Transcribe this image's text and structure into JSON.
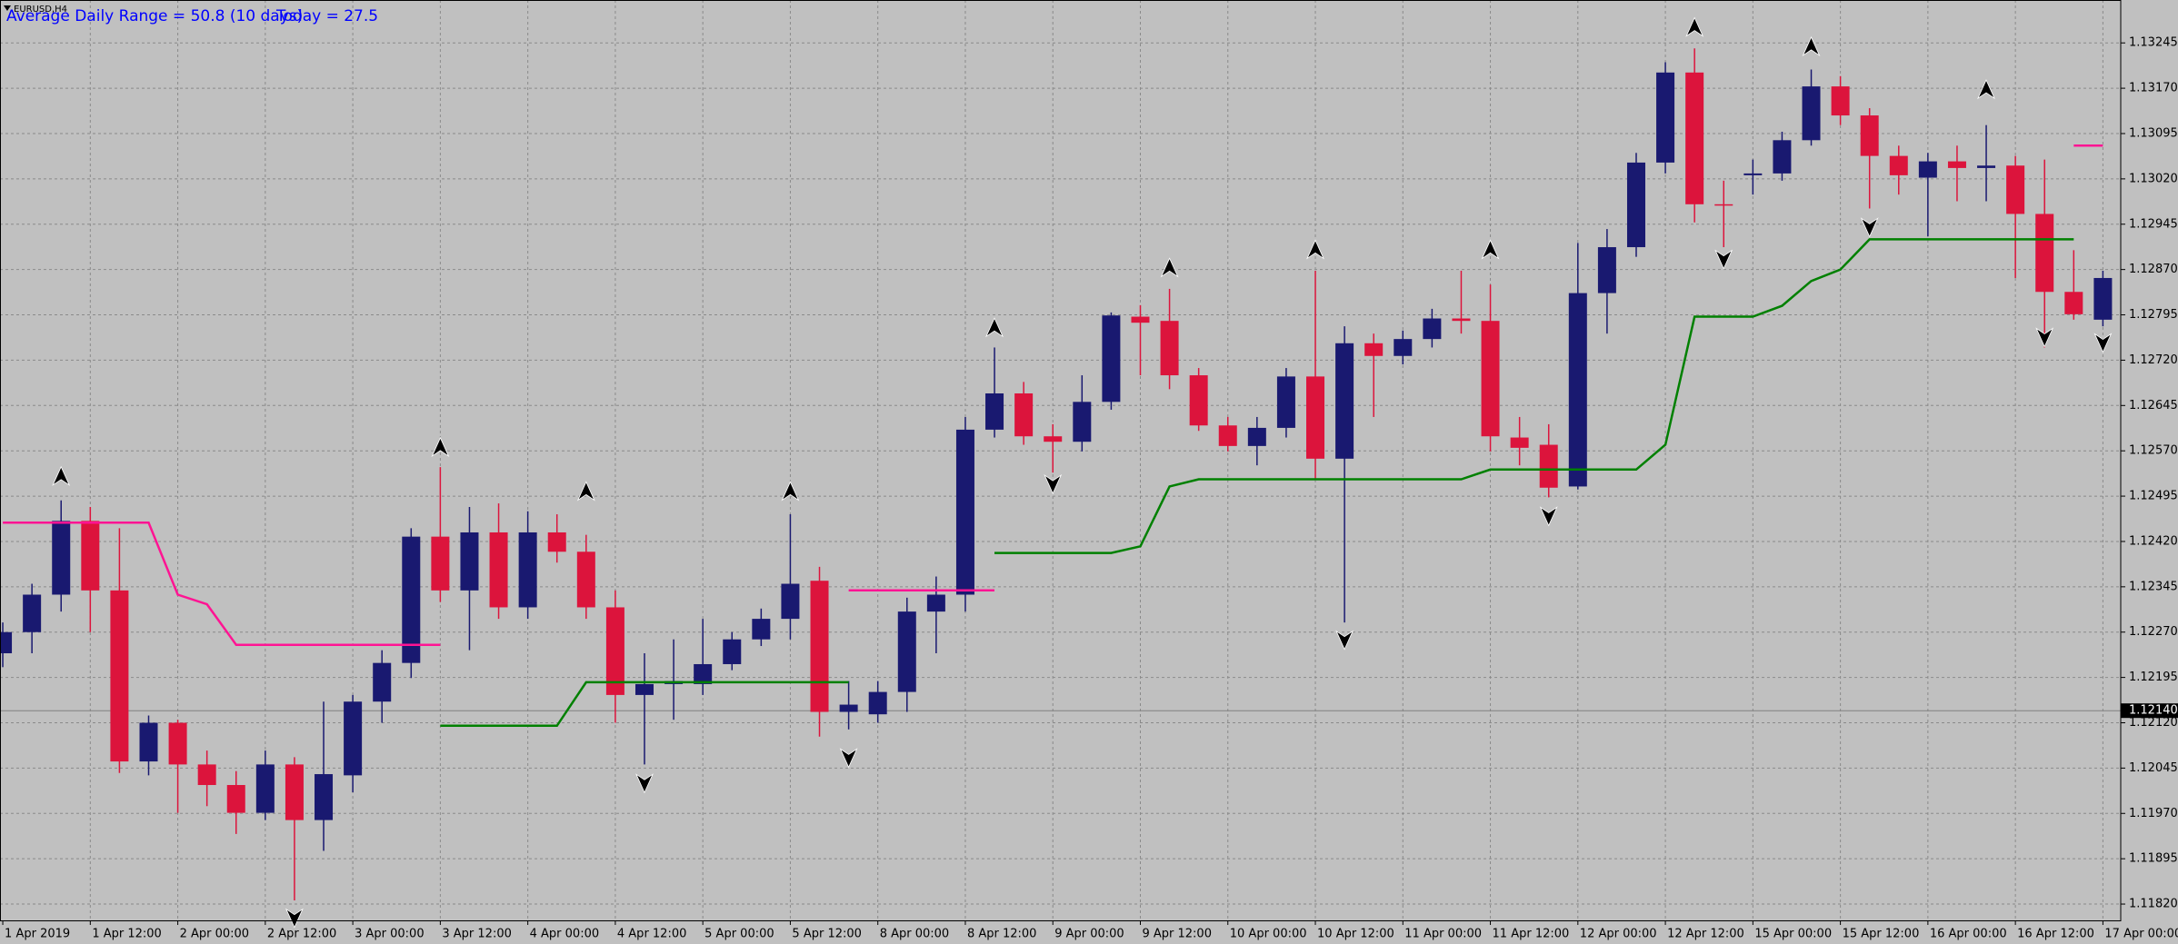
{
  "chart_data": {
    "type": "candlestick",
    "title": "EURUSD,H4",
    "annotations": [
      "Average Daily Range = 50.8 (10 days)",
      "Today = 27.5"
    ],
    "annotation_color": "#0000ff",
    "background": "#c0c0c0",
    "grid": true,
    "up_color": "#191970",
    "down_color": "#dc143c",
    "categories": [
      "1 Apr 2019",
      null,
      null,
      "1 Apr 12:00",
      null,
      null,
      "2 Apr 00:00",
      null,
      null,
      "2 Apr 12:00",
      null,
      null,
      "3 Apr 00:00",
      null,
      null,
      "3 Apr 12:00",
      null,
      null,
      "4 Apr 00:00",
      null,
      null,
      "4 Apr 12:00",
      null,
      null,
      "5 Apr 00:00",
      null,
      null,
      "5 Apr 12:00",
      null,
      null,
      "8 Apr 00:00",
      null,
      null,
      "8 Apr 12:00",
      null,
      null,
      "9 Apr 00:00",
      null,
      null,
      "9 Apr 12:00",
      null,
      null,
      "10 Apr 00:00",
      null,
      null,
      "10 Apr 12:00",
      null,
      null,
      "11 Apr 00:00",
      null,
      null,
      "11 Apr 12:00",
      null,
      null,
      "12 Apr 00:00",
      null,
      null,
      "12 Apr 12:00",
      null,
      null,
      "15 Apr 00:00",
      null,
      null,
      "15 Apr 12:00",
      null,
      null,
      "16 Apr 00:00",
      null,
      null,
      "16 Apr 12:00",
      null,
      null,
      "17 Apr 00:00"
    ],
    "open": [
      1.12235,
      1.1227,
      1.12332,
      1.12454,
      1.12339,
      1.12056,
      1.1212,
      1.12051,
      1.12017,
      1.11971,
      1.12051,
      1.11959,
      1.12033,
      1.12155,
      1.12219,
      1.12428,
      1.12339,
      1.12435,
      1.12311,
      1.12435,
      1.12403,
      1.12311,
      1.12166,
      1.12184,
      1.12184,
      1.12217,
      1.12258,
      1.12292,
      1.12355,
      1.12138,
      1.12134,
      1.12171,
      1.12304,
      1.12332,
      1.12605,
      1.12665,
      1.12594,
      1.12585,
      1.12651,
      1.12792,
      1.12785,
      1.12695,
      1.12612,
      1.12578,
      1.12608,
      1.12693,
      1.12557,
      1.12748,
      1.12727,
      1.12755,
      1.12789,
      1.12785,
      1.12592,
      1.1258,
      1.12511,
      1.12831,
      1.12907,
      1.13047,
      1.13196,
      1.12978,
      1.13026,
      1.13029,
      1.13084,
      1.13173,
      1.13125,
      1.13058,
      1.13022,
      1.13049,
      1.13038,
      1.13042,
      1.12962,
      1.12833,
      1.12787
    ],
    "high": [
      1.12286,
      1.1235,
      1.12488,
      1.12477,
      1.12442,
      1.12132,
      1.12125,
      1.12074,
      1.1204,
      1.12074,
      1.12063,
      1.12155,
      1.12166,
      1.1224,
      1.12442,
      1.12543,
      1.12477,
      1.12483,
      1.1247,
      1.12465,
      1.12431,
      1.12339,
      1.12235,
      1.12258,
      1.12292,
      1.1227,
      1.12309,
      1.12465,
      1.12378,
      1.12189,
      1.12189,
      1.12327,
      1.12362,
      1.12626,
      1.12741,
      1.12684,
      1.12614,
      1.12695,
      1.12799,
      1.12811,
      1.12838,
      1.12707,
      1.12626,
      1.12626,
      1.12707,
      1.12868,
      1.12776,
      1.12764,
      1.12769,
      1.12805,
      1.12868,
      1.12845,
      1.12626,
      1.12614,
      1.12914,
      1.12937,
      1.13063,
      1.13213,
      1.13236,
      1.13017,
      1.13052,
      1.13098,
      1.13201,
      1.1319,
      1.13137,
      1.13075,
      1.13063,
      1.13075,
      1.13109,
      1.13058,
      1.13052,
      1.12902,
      1.12868
    ],
    "low": [
      1.12212,
      1.12235,
      1.12304,
      1.1227,
      1.12037,
      1.12033,
      1.11971,
      1.11982,
      1.11936,
      1.11959,
      1.11826,
      1.11908,
      1.12005,
      1.1212,
      1.12194,
      1.1232,
      1.1224,
      1.12292,
      1.12292,
      1.12385,
      1.12292,
      1.1212,
      1.12051,
      1.12125,
      1.12166,
      1.12207,
      1.12247,
      1.12258,
      1.12097,
      1.12109,
      1.1212,
      1.12138,
      1.12235,
      1.12304,
      1.12592,
      1.1258,
      1.12534,
      1.12569,
      1.12638,
      1.12695,
      1.12672,
      1.12603,
      1.12569,
      1.12546,
      1.12592,
      1.12523,
      1.12286,
      1.12626,
      1.12713,
      1.12741,
      1.12764,
      1.12569,
      1.12546,
      1.12493,
      1.12506,
      1.12764,
      1.12891,
      1.13029,
      1.12948,
      1.12907,
      1.12994,
      1.13017,
      1.13075,
      1.13109,
      1.12971,
      1.12994,
      1.12925,
      1.12983,
      1.12983,
      1.12856,
      1.12741,
      1.12787,
      1.12776
    ],
    "close": [
      1.1227,
      1.12332,
      1.12454,
      1.12339,
      1.12056,
      1.1212,
      1.12051,
      1.12017,
      1.11971,
      1.12051,
      1.11959,
      1.12035,
      1.12155,
      1.12219,
      1.12428,
      1.12339,
      1.12435,
      1.12311,
      1.12435,
      1.12403,
      1.12311,
      1.12166,
      1.12184,
      1.12189,
      1.12217,
      1.12258,
      1.12292,
      1.1235,
      1.12138,
      1.1215,
      1.12171,
      1.12304,
      1.12332,
      1.12605,
      1.12665,
      1.12594,
      1.12585,
      1.12651,
      1.12794,
      1.12782,
      1.12695,
      1.12612,
      1.12578,
      1.12608,
      1.12693,
      1.12557,
      1.12748,
      1.12727,
      1.12755,
      1.12789,
      1.12785,
      1.12594,
      1.12575,
      1.12509,
      1.12831,
      1.12907,
      1.13047,
      1.13196,
      1.12978,
      1.12976,
      1.13029,
      1.13084,
      1.13173,
      1.13125,
      1.13058,
      1.13026,
      1.13049,
      1.13038,
      1.13042,
      1.12962,
      1.12833,
      1.12796,
      1.12856
    ],
    "series": [
      {
        "style": "line",
        "color": "#ff1493",
        "values": [
          1.12451,
          1.12451,
          1.12451,
          1.12451,
          1.12451,
          1.12451,
          1.12332,
          1.12316,
          1.12249,
          1.12249,
          1.12249,
          1.12249,
          1.12249,
          1.12249,
          1.12249,
          1.12249,
          null,
          null,
          null,
          null,
          null,
          null,
          null,
          null,
          null,
          null,
          null,
          null,
          null,
          1.12339,
          1.12339,
          1.12339,
          1.12339,
          1.12339,
          1.12339,
          null,
          null,
          null,
          null,
          null,
          null,
          null,
          null,
          null,
          null,
          null,
          null,
          null,
          null,
          null,
          null,
          null,
          null,
          null,
          null,
          null,
          null,
          null,
          null,
          null,
          null,
          null,
          null,
          null,
          null,
          null,
          null,
          null,
          null,
          null,
          null,
          1.13075,
          1.13075
        ]
      },
      {
        "style": "line",
        "color": "#008000",
        "values": [
          null,
          null,
          null,
          null,
          null,
          null,
          null,
          null,
          null,
          null,
          null,
          null,
          null,
          null,
          null,
          1.12115,
          1.12115,
          1.12115,
          1.12115,
          1.12115,
          1.12187,
          1.12187,
          1.12187,
          1.12187,
          1.12187,
          1.12187,
          1.12187,
          1.12187,
          1.12187,
          1.12187,
          null,
          null,
          null,
          null,
          1.12401,
          1.12401,
          1.12401,
          1.12401,
          1.12401,
          1.12412,
          1.12511,
          1.12523,
          1.12523,
          1.12523,
          1.12523,
          1.12523,
          1.12523,
          1.12523,
          1.12523,
          1.12523,
          1.12523,
          1.12539,
          1.12539,
          1.12539,
          1.12539,
          1.12539,
          1.12539,
          1.1258,
          1.12792,
          1.12792,
          1.12792,
          1.1281,
          1.12851,
          1.1287,
          1.1292,
          1.1292,
          1.1292,
          1.1292,
          1.1292,
          1.1292,
          1.1292,
          1.1292,
          null
        ]
      },
      {
        "style": "arrow-up",
        "color": "#000000",
        "values": [
          null,
          null,
          1.12527,
          null,
          null,
          null,
          null,
          null,
          null,
          null,
          null,
          null,
          null,
          null,
          null,
          1.12575,
          null,
          null,
          null,
          null,
          1.12502,
          null,
          null,
          null,
          null,
          null,
          null,
          1.12502,
          null,
          null,
          null,
          null,
          null,
          null,
          1.12773,
          null,
          null,
          null,
          null,
          null,
          1.12872,
          null,
          null,
          null,
          null,
          1.12902,
          null,
          null,
          null,
          null,
          null,
          1.12902,
          null,
          null,
          null,
          null,
          null,
          null,
          1.1327,
          null,
          null,
          null,
          1.13238,
          null,
          null,
          null,
          null,
          null,
          1.13167,
          null,
          null,
          null,
          null
        ]
      },
      {
        "style": "arrow-down",
        "color": "#000000",
        "values": [
          null,
          null,
          null,
          null,
          null,
          null,
          null,
          null,
          null,
          null,
          1.11798,
          null,
          null,
          null,
          null,
          null,
          null,
          null,
          null,
          null,
          null,
          null,
          1.12021,
          null,
          null,
          null,
          null,
          null,
          null,
          1.12063,
          null,
          null,
          null,
          null,
          null,
          null,
          1.12516,
          null,
          null,
          null,
          null,
          null,
          null,
          null,
          null,
          null,
          1.12258,
          null,
          null,
          null,
          null,
          null,
          null,
          1.12463,
          null,
          null,
          null,
          null,
          null,
          1.12888,
          null,
          null,
          null,
          null,
          1.12941,
          null,
          null,
          null,
          null,
          null,
          1.12759,
          null,
          1.1275
        ]
      }
    ],
    "current_price": {
      "value": 1.1214,
      "label": "1.12140"
    },
    "ylim": [
      1.11793,
      1.13316
    ],
    "yticks": [
      1.13245,
      {
        "value": 1.1317,
        "label": "1.13170"
      },
      1.13095,
      {
        "value": 1.1302,
        "label": "1.13020"
      },
      1.12945,
      {
        "value": 1.1287,
        "label": "1.12870"
      },
      1.12795,
      {
        "value": 1.1272,
        "label": "1.12720"
      },
      1.12645,
      {
        "value": 1.1257,
        "label": "1.12570"
      },
      1.12495,
      {
        "value": 1.1242,
        "label": "1.12420"
      },
      1.12345,
      {
        "value": 1.1227,
        "label": "1.12270"
      },
      1.12195,
      {
        "value": 1.1212,
        "label": "1.12120"
      },
      1.12045,
      {
        "value": 1.1197,
        "label": "1.11970"
      },
      1.11895,
      {
        "value": 1.1182,
        "label": "1.11820"
      }
    ]
  }
}
